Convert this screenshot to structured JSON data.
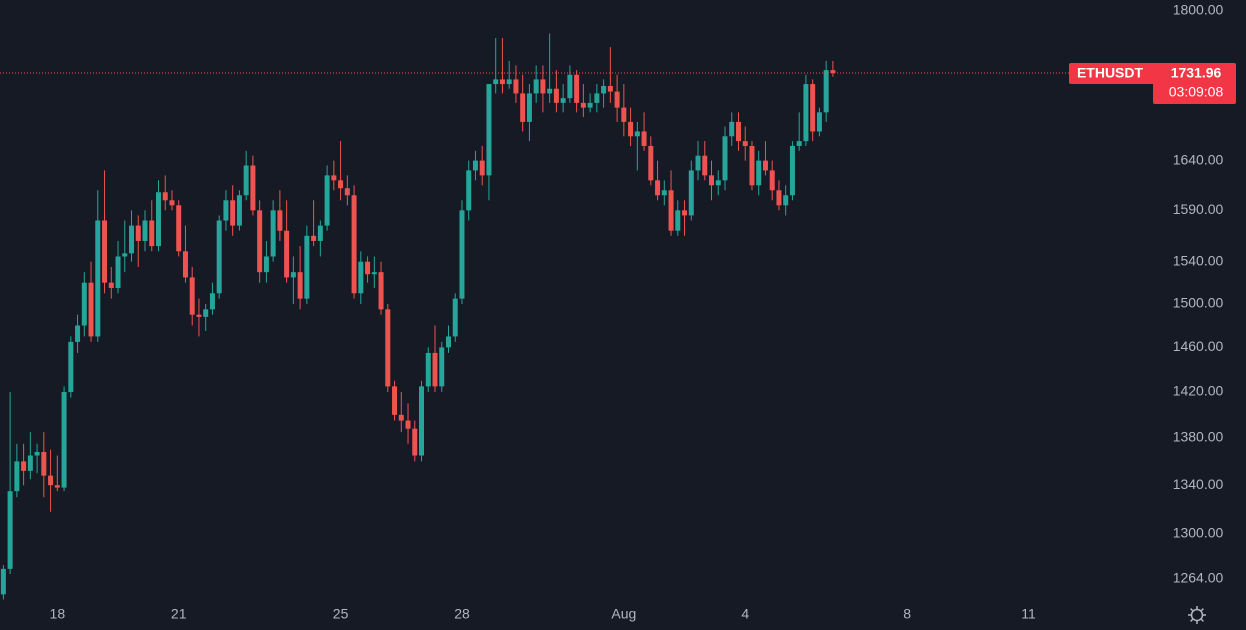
{
  "chart_data": {
    "type": "candlestick",
    "symbol": "ETHUSDT",
    "countdown": "03:09:08",
    "up_color": "#26a69a",
    "down_color": "#ef5350",
    "log_scale": true,
    "grid": false,
    "ylim": [
      1247.6,
      1812.4
    ],
    "yticks": [
      {
        "value": 1800,
        "label": "1800.00"
      },
      {
        "value": 1640,
        "label": "1640.00"
      },
      {
        "value": 1590,
        "label": "1590.00"
      },
      {
        "value": 1540,
        "label": "1540.00"
      },
      {
        "value": 1500,
        "label": "1500.00"
      },
      {
        "value": 1460,
        "label": "1460.00"
      },
      {
        "value": 1420,
        "label": "1420.00"
      },
      {
        "value": 1380,
        "label": "1380.00"
      },
      {
        "value": 1340,
        "label": "1340.00"
      },
      {
        "value": 1300,
        "label": "1300.00"
      },
      {
        "value": 1264,
        "label": "1264.00"
      }
    ],
    "categories": [
      null,
      null,
      null,
      null,
      null,
      null,
      null,
      null,
      "18",
      null,
      null,
      null,
      null,
      null,
      null,
      null,
      null,
      null,
      null,
      null,
      null,
      null,
      null,
      null,
      null,
      null,
      "21",
      null,
      null,
      null,
      null,
      null,
      null,
      null,
      null,
      null,
      null,
      null,
      null,
      null,
      null,
      null,
      null,
      null,
      null,
      null,
      null,
      null,
      null,
      null,
      "25",
      null,
      null,
      null,
      null,
      null,
      null,
      null,
      null,
      null,
      null,
      null,
      null,
      null,
      null,
      null,
      null,
      null,
      "28",
      null,
      null,
      null,
      null,
      null,
      null,
      null,
      null,
      null,
      null,
      null,
      null,
      null,
      null,
      null,
      null,
      null,
      null,
      null,
      null,
      null,
      null,
      null,
      "Aug",
      null,
      null,
      null,
      null,
      null,
      null,
      null,
      null,
      null,
      null,
      null,
      null,
      null,
      null,
      null,
      null,
      null,
      "4",
      null,
      null,
      null,
      null,
      null,
      null,
      null,
      null,
      null,
      null,
      null,
      null,
      null,
      null,
      null,
      null,
      null,
      null,
      null,
      null,
      null,
      null,
      null,
      "8",
      null,
      null,
      null,
      null,
      null,
      null,
      null,
      null,
      null,
      null,
      null,
      null,
      null,
      null,
      null,
      null,
      null,
      "11",
      null,
      null,
      null,
      null,
      null,
      null,
      null,
      null,
      null,
      null,
      null,
      null,
      null,
      null,
      null,
      null,
      null,
      null,
      null
    ],
    "open": [
      1252,
      1272,
      1335,
      1360,
      1352,
      1365,
      1368,
      1348,
      1340,
      1338,
      1420,
      1465,
      1480,
      1520,
      1470,
      1580,
      1520,
      1515,
      1545,
      1548,
      1575,
      1560,
      1580,
      1555,
      1608,
      1600,
      1595,
      1550,
      1525,
      1490,
      1488,
      1495,
      1510,
      1580,
      1600,
      1575,
      1605,
      1635,
      1590,
      1530,
      1545,
      1590,
      1570,
      1525,
      1530,
      1505,
      1565,
      1560,
      1575,
      1625,
      1620,
      1612,
      1605,
      1510,
      1540,
      1528,
      1530,
      1495,
      1425,
      1400,
      1395,
      1388,
      1365,
      1425,
      1455,
      1425,
      1460,
      1470,
      1505,
      1590,
      1630,
      1640,
      1625,
      1720,
      1725,
      1720,
      1725,
      1710,
      1680,
      1710,
      1725,
      1710,
      1715,
      1700,
      1705,
      1730,
      1700,
      1695,
      1700,
      1710,
      1718,
      1712,
      1695,
      1680,
      1665,
      1670,
      1655,
      1620,
      1605,
      1610,
      1570,
      1590,
      1585,
      1630,
      1645,
      1625,
      1615,
      1620,
      1665,
      1680,
      1660,
      1655,
      1615,
      1640,
      1630,
      1610,
      1595,
      1605,
      1655,
      1660,
      1720,
      1670,
      1690,
      1735,
      null,
      null,
      null,
      null,
      null,
      null,
      null,
      null,
      null,
      null,
      null,
      null,
      null,
      null,
      null,
      null,
      null,
      null,
      null,
      null,
      null,
      null,
      null,
      null,
      null,
      null,
      null,
      null,
      null,
      null,
      null,
      null,
      null,
      null,
      null,
      null,
      null,
      null,
      null,
      null,
      null,
      null,
      null,
      null,
      null,
      null,
      null,
      null
    ],
    "high": [
      1275,
      1420,
      1375,
      1375,
      1385,
      1375,
      1385,
      1370,
      1365,
      1425,
      1470,
      1490,
      1530,
      1540,
      1610,
      1630,
      1535,
      1560,
      1580,
      1590,
      1585,
      1590,
      1600,
      1620,
      1625,
      1610,
      1600,
      1575,
      1535,
      1505,
      1500,
      1520,
      1585,
      1610,
      1615,
      1610,
      1650,
      1645,
      1600,
      1560,
      1600,
      1610,
      1600,
      1545,
      1555,
      1575,
      1600,
      1580,
      1635,
      1640,
      1660,
      1625,
      1615,
      1550,
      1545,
      1545,
      1540,
      1500,
      1430,
      1420,
      1410,
      1395,
      1430,
      1460,
      1480,
      1465,
      1480,
      1510,
      1600,
      1640,
      1650,
      1655,
      1720,
      1770,
      1770,
      1745,
      1740,
      1730,
      1720,
      1740,
      1740,
      1775,
      1735,
      1720,
      1740,
      1735,
      1720,
      1710,
      1720,
      1725,
      1760,
      1730,
      1720,
      1695,
      1680,
      1690,
      1665,
      1640,
      1620,
      1630,
      1600,
      1600,
      1640,
      1660,
      1660,
      1640,
      1630,
      1675,
      1690,
      1690,
      1675,
      1660,
      1650,
      1660,
      1640,
      1620,
      1615,
      1660,
      1690,
      1730,
      1725,
      1695,
      1745,
      1745,
      null,
      null,
      null,
      null,
      null,
      null,
      null,
      null,
      null,
      null,
      null,
      null,
      null,
      null,
      null,
      null,
      null,
      null,
      null,
      null,
      null,
      null,
      null,
      null,
      null,
      null,
      null,
      null,
      null,
      null,
      null,
      null,
      null,
      null,
      null,
      null,
      null,
      null,
      null,
      null,
      null,
      null,
      null,
      null,
      null,
      null,
      null,
      null
    ],
    "low": [
      1248,
      1268,
      1330,
      1340,
      1345,
      1350,
      1330,
      1318,
      1335,
      1335,
      1415,
      1455,
      1470,
      1465,
      1465,
      1510,
      1505,
      1510,
      1530,
      1540,
      1535,
      1550,
      1550,
      1550,
      1590,
      1590,
      1545,
      1520,
      1480,
      1470,
      1475,
      1490,
      1505,
      1570,
      1565,
      1570,
      1600,
      1585,
      1520,
      1520,
      1540,
      1560,
      1520,
      1500,
      1495,
      1500,
      1555,
      1545,
      1570,
      1610,
      1600,
      1595,
      1505,
      1500,
      1520,
      1515,
      1490,
      1420,
      1395,
      1385,
      1375,
      1360,
      1360,
      1420,
      1420,
      1420,
      1455,
      1465,
      1500,
      1580,
      1620,
      1615,
      1600,
      1710,
      1710,
      1715,
      1700,
      1670,
      1660,
      1700,
      1690,
      1700,
      1690,
      1690,
      1700,
      1690,
      1685,
      1690,
      1690,
      1695,
      1700,
      1680,
      1665,
      1655,
      1630,
      1650,
      1615,
      1600,
      1595,
      1565,
      1565,
      1565,
      1580,
      1620,
      1620,
      1600,
      1605,
      1610,
      1655,
      1650,
      1640,
      1610,
      1605,
      1625,
      1600,
      1590,
      1585,
      1600,
      1650,
      1655,
      1660,
      1665,
      1680,
      1728,
      null,
      null,
      null,
      null,
      null,
      null,
      null,
      null,
      null,
      null,
      null,
      null,
      null,
      null,
      null,
      null,
      null,
      null,
      null,
      null,
      null,
      null,
      null,
      null,
      null,
      null,
      null,
      null,
      null,
      null,
      null,
      null,
      null,
      null,
      null,
      null,
      null,
      null,
      null,
      null,
      null,
      null,
      null,
      null,
      null,
      null,
      null,
      null
    ],
    "close": [
      1272,
      1335,
      1360,
      1352,
      1365,
      1368,
      1348,
      1340,
      1338,
      1420,
      1465,
      1480,
      1520,
      1470,
      1580,
      1520,
      1515,
      1545,
      1548,
      1575,
      1560,
      1580,
      1555,
      1608,
      1600,
      1595,
      1550,
      1525,
      1490,
      1488,
      1495,
      1510,
      1580,
      1600,
      1575,
      1605,
      1635,
      1590,
      1530,
      1545,
      1590,
      1570,
      1525,
      1530,
      1505,
      1565,
      1560,
      1575,
      1625,
      1620,
      1612,
      1605,
      1510,
      1540,
      1528,
      1530,
      1495,
      1425,
      1400,
      1395,
      1388,
      1365,
      1425,
      1455,
      1425,
      1460,
      1470,
      1505,
      1590,
      1630,
      1640,
      1625,
      1720,
      1725,
      1720,
      1725,
      1710,
      1680,
      1710,
      1725,
      1710,
      1715,
      1700,
      1705,
      1730,
      1700,
      1695,
      1700,
      1710,
      1718,
      1712,
      1695,
      1680,
      1665,
      1670,
      1655,
      1620,
      1605,
      1610,
      1570,
      1590,
      1585,
      1630,
      1645,
      1625,
      1615,
      1620,
      1665,
      1680,
      1660,
      1655,
      1615,
      1640,
      1630,
      1610,
      1595,
      1605,
      1655,
      1660,
      1720,
      1670,
      1690,
      1735,
      1731.96,
      null,
      null,
      null,
      null,
      null,
      null,
      null,
      null,
      null,
      null,
      null,
      null,
      null,
      null,
      null,
      null,
      null,
      null,
      null,
      null,
      null,
      null,
      null,
      null,
      null,
      null,
      null,
      null,
      null,
      null,
      null,
      null,
      null,
      null,
      null,
      null,
      null,
      null,
      null,
      null,
      null,
      null,
      null,
      null,
      null,
      null,
      null,
      null
    ]
  }
}
